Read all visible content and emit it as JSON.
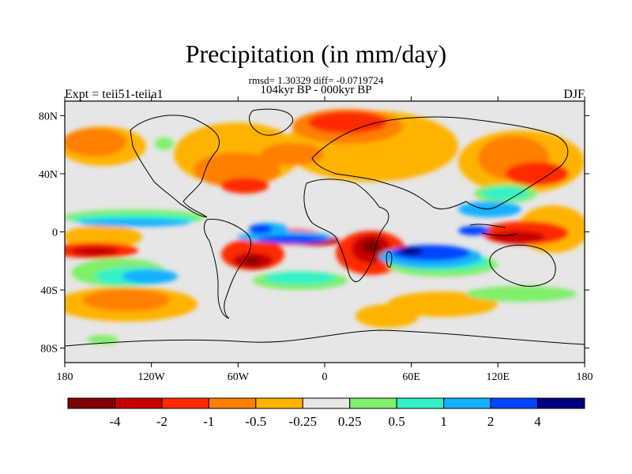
{
  "title": "Precipitation (in mm/day)",
  "stats_line": "rmsd= 1.30329 diff= -0.0719724",
  "period_line": "104kyr BP - 000kyr BP",
  "experiment_label": "Expt = teii51-teiia1",
  "season_label": "DJF",
  "map": {
    "lat_ticks": [
      "80N",
      "40N",
      "0",
      "40S",
      "80S"
    ],
    "lon_ticks": [
      "180",
      "120W",
      "60W",
      "0",
      "60E",
      "120E",
      "180"
    ],
    "ocean_background": "#e6e6e6",
    "coastline_color": "#000000"
  },
  "colorbar": {
    "colors": [
      "#7f0000",
      "#c80000",
      "#ff2a00",
      "#ff7f00",
      "#ffb300",
      "#e6e6e6",
      "#80ef6b",
      "#33f2c7",
      "#14b0ff",
      "#0044ff",
      "#00007f"
    ],
    "labels": [
      "-4",
      "-2",
      "-1",
      "-0.5",
      "-0.25",
      "0.25",
      "0.5",
      "1",
      "2",
      "4"
    ]
  }
}
